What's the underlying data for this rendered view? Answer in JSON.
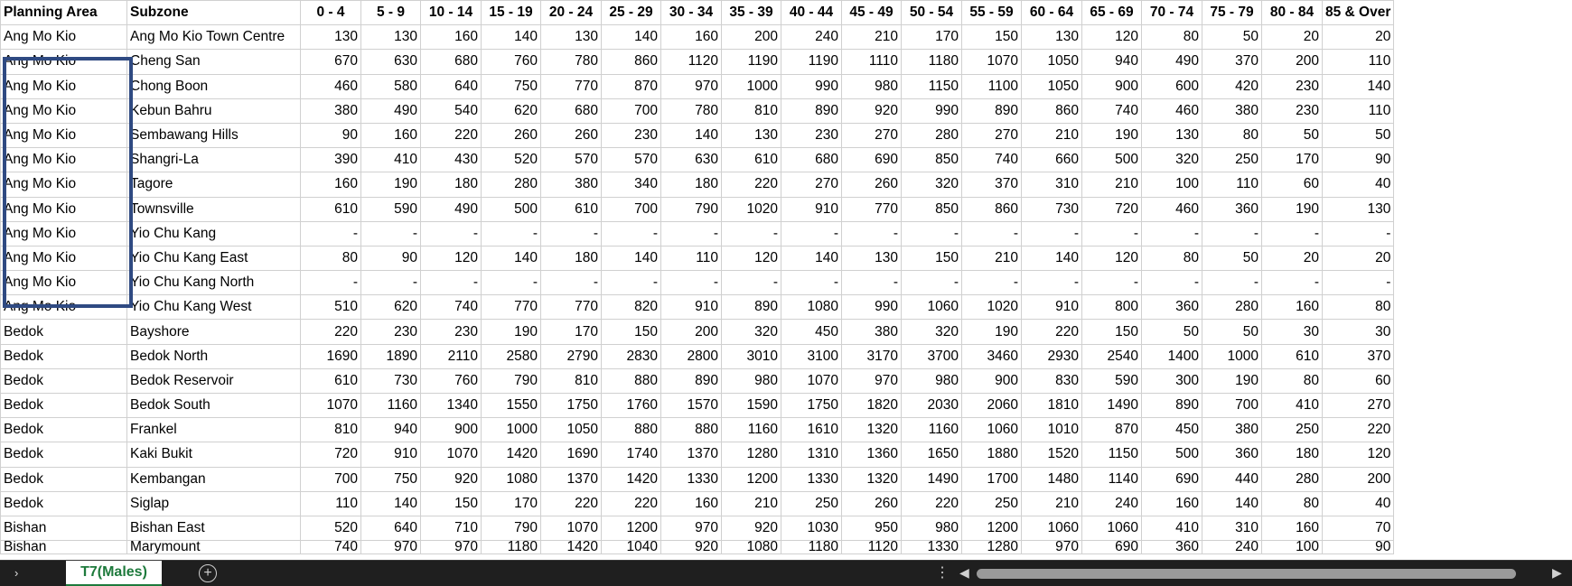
{
  "sheet": {
    "headers": [
      "Planning Area",
      "Subzone",
      "0 - 4",
      "5 - 9",
      "10 - 14",
      "15 - 19",
      "20 - 24",
      "25 - 29",
      "30 - 34",
      "35 - 39",
      "40 - 44",
      "45 - 49",
      "50 - 54",
      "55 - 59",
      "60 - 64",
      "65 - 69",
      "70 - 74",
      "75 - 79",
      "80 - 84",
      "85 & Over"
    ],
    "rows": [
      [
        "Ang Mo Kio",
        "Ang Mo Kio Town Centre",
        "130",
        "130",
        "160",
        "140",
        "130",
        "140",
        "160",
        "200",
        "240",
        "210",
        "170",
        "150",
        "130",
        "120",
        "80",
        "50",
        "20",
        "20"
      ],
      [
        "Ang Mo Kio",
        "Cheng San",
        "670",
        "630",
        "680",
        "760",
        "780",
        "860",
        "1120",
        "1190",
        "1190",
        "1110",
        "1180",
        "1070",
        "1050",
        "940",
        "490",
        "370",
        "200",
        "110"
      ],
      [
        "Ang Mo Kio",
        "Chong Boon",
        "460",
        "580",
        "640",
        "750",
        "770",
        "870",
        "970",
        "1000",
        "990",
        "980",
        "1150",
        "1100",
        "1050",
        "900",
        "600",
        "420",
        "230",
        "140"
      ],
      [
        "Ang Mo Kio",
        "Kebun Bahru",
        "380",
        "490",
        "540",
        "620",
        "680",
        "700",
        "780",
        "810",
        "890",
        "920",
        "990",
        "890",
        "860",
        "740",
        "460",
        "380",
        "230",
        "110"
      ],
      [
        "Ang Mo Kio",
        "Sembawang Hills",
        "90",
        "160",
        "220",
        "260",
        "260",
        "230",
        "140",
        "130",
        "230",
        "270",
        "280",
        "270",
        "210",
        "190",
        "130",
        "80",
        "50",
        "50"
      ],
      [
        "Ang Mo Kio",
        "Shangri-La",
        "390",
        "410",
        "430",
        "520",
        "570",
        "570",
        "630",
        "610",
        "680",
        "690",
        "850",
        "740",
        "660",
        "500",
        "320",
        "250",
        "170",
        "90"
      ],
      [
        "Ang Mo Kio",
        "Tagore",
        "160",
        "190",
        "180",
        "280",
        "380",
        "340",
        "180",
        "220",
        "270",
        "260",
        "320",
        "370",
        "310",
        "210",
        "100",
        "110",
        "60",
        "40"
      ],
      [
        "Ang Mo Kio",
        "Townsville",
        "610",
        "590",
        "490",
        "500",
        "610",
        "700",
        "790",
        "1020",
        "910",
        "770",
        "850",
        "860",
        "730",
        "720",
        "460",
        "360",
        "190",
        "130"
      ],
      [
        "Ang Mo Kio",
        "Yio Chu Kang",
        "-",
        "-",
        "-",
        "-",
        "-",
        "-",
        "-",
        "-",
        "-",
        "-",
        "-",
        "-",
        "-",
        "-",
        "-",
        "-",
        "-",
        "-"
      ],
      [
        "Ang Mo Kio",
        "Yio Chu Kang East",
        "80",
        "90",
        "120",
        "140",
        "180",
        "140",
        "110",
        "120",
        "140",
        "130",
        "150",
        "210",
        "140",
        "120",
        "80",
        "50",
        "20",
        "20"
      ],
      [
        "Ang Mo Kio",
        "Yio Chu Kang North",
        "-",
        "-",
        "-",
        "-",
        "-",
        "-",
        "-",
        "-",
        "-",
        "-",
        "-",
        "-",
        "-",
        "-",
        "-",
        "-",
        "-",
        "-"
      ],
      [
        "Ang Mo Kio",
        "Yio Chu Kang West",
        "510",
        "620",
        "740",
        "770",
        "770",
        "820",
        "910",
        "890",
        "1080",
        "990",
        "1060",
        "1020",
        "910",
        "800",
        "360",
        "280",
        "160",
        "80"
      ],
      [
        "Bedok",
        "Bayshore",
        "220",
        "230",
        "230",
        "190",
        "170",
        "150",
        "200",
        "320",
        "450",
        "380",
        "320",
        "190",
        "220",
        "150",
        "50",
        "50",
        "30",
        "30"
      ],
      [
        "Bedok",
        "Bedok North",
        "1690",
        "1890",
        "2110",
        "2580",
        "2790",
        "2830",
        "2800",
        "3010",
        "3100",
        "3170",
        "3700",
        "3460",
        "2930",
        "2540",
        "1400",
        "1000",
        "610",
        "370"
      ],
      [
        "Bedok",
        "Bedok Reservoir",
        "610",
        "730",
        "760",
        "790",
        "810",
        "880",
        "890",
        "980",
        "1070",
        "970",
        "980",
        "900",
        "830",
        "590",
        "300",
        "190",
        "80",
        "60"
      ],
      [
        "Bedok",
        "Bedok South",
        "1070",
        "1160",
        "1340",
        "1550",
        "1750",
        "1760",
        "1570",
        "1590",
        "1750",
        "1820",
        "2030",
        "2060",
        "1810",
        "1490",
        "890",
        "700",
        "410",
        "270"
      ],
      [
        "Bedok",
        "Frankel",
        "810",
        "940",
        "900",
        "1000",
        "1050",
        "880",
        "880",
        "1160",
        "1610",
        "1320",
        "1160",
        "1060",
        "1010",
        "870",
        "450",
        "380",
        "250",
        "220"
      ],
      [
        "Bedok",
        "Kaki Bukit",
        "720",
        "910",
        "1070",
        "1420",
        "1690",
        "1740",
        "1370",
        "1280",
        "1310",
        "1360",
        "1650",
        "1880",
        "1520",
        "1150",
        "500",
        "360",
        "180",
        "120"
      ],
      [
        "Bedok",
        "Kembangan",
        "700",
        "750",
        "920",
        "1080",
        "1370",
        "1420",
        "1330",
        "1200",
        "1330",
        "1320",
        "1490",
        "1700",
        "1480",
        "1140",
        "690",
        "440",
        "280",
        "200"
      ],
      [
        "Bedok",
        "Siglap",
        "110",
        "140",
        "150",
        "170",
        "220",
        "220",
        "160",
        "210",
        "250",
        "260",
        "220",
        "250",
        "210",
        "240",
        "160",
        "140",
        "80",
        "40"
      ],
      [
        "Bishan",
        "Bishan East",
        "520",
        "640",
        "710",
        "790",
        "1070",
        "1200",
        "970",
        "920",
        "1030",
        "950",
        "980",
        "1200",
        "1060",
        "1060",
        "410",
        "310",
        "160",
        "70"
      ],
      [
        "Bishan",
        "Marymount",
        "740",
        "970",
        "970",
        "1180",
        "1420",
        "1040",
        "920",
        "1080",
        "1180",
        "1120",
        "1330",
        "1280",
        "970",
        "690",
        "360",
        "240",
        "100",
        "90"
      ]
    ]
  },
  "footer": {
    "active_tab": "T7(Males)",
    "nav_arrow": "›",
    "add_sheet": "+",
    "split_dots": "⋮",
    "scroll_left": "◀",
    "scroll_right": "▶"
  },
  "selection": {
    "color": "#2f4a82"
  },
  "colors": {
    "tab_text": "#1e7a3c",
    "footer_bg": "#1f1f1f"
  }
}
